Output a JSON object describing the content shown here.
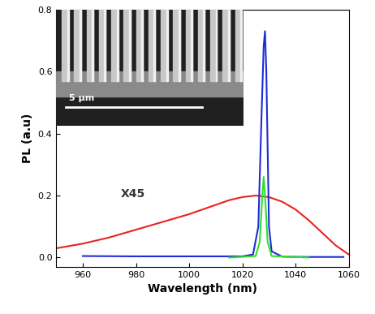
{
  "chart_data": {
    "type": "line",
    "x_label": "Wavelength (nm)",
    "y_label": "PL (a.u)",
    "xlim": [
      950,
      1060
    ],
    "xticks": [
      960,
      980,
      1000,
      1020,
      1040,
      1060
    ],
    "ylim": [
      -0.03,
      0.8
    ],
    "yticks": [
      0.0,
      0.2,
      0.4,
      0.6,
      0.8
    ],
    "annotations": [
      "X45",
      "5 μm"
    ],
    "series": [
      {
        "color": "#e8231e",
        "x": [
          950,
          960,
          970,
          980,
          990,
          1000,
          1010,
          1015,
          1020,
          1025,
          1030,
          1035,
          1040,
          1045,
          1050,
          1055,
          1060
        ],
        "values": [
          0.03,
          0.045,
          0.065,
          0.09,
          0.115,
          0.14,
          0.17,
          0.185,
          0.195,
          0.2,
          0.195,
          0.18,
          0.155,
          0.12,
          0.08,
          0.04,
          0.01
        ]
      },
      {
        "color": "#1f2bd6",
        "x": [
          960,
          980,
          1000,
          1020,
          1024,
          1026,
          1027,
          1028,
          1028.5,
          1029,
          1030,
          1031,
          1035,
          1045,
          1058
        ],
        "values": [
          0.005,
          0.004,
          0.004,
          0.004,
          0.01,
          0.1,
          0.4,
          0.68,
          0.73,
          0.6,
          0.1,
          0.02,
          0.003,
          0.002,
          0.002
        ]
      },
      {
        "color": "#2ee02e",
        "x": [
          1015,
          1025,
          1026.5,
          1027.5,
          1028,
          1028.5,
          1029.5,
          1031,
          1045
        ],
        "values": [
          0.0,
          0.005,
          0.05,
          0.2,
          0.26,
          0.2,
          0.05,
          0.005,
          0.0
        ]
      }
    ]
  }
}
